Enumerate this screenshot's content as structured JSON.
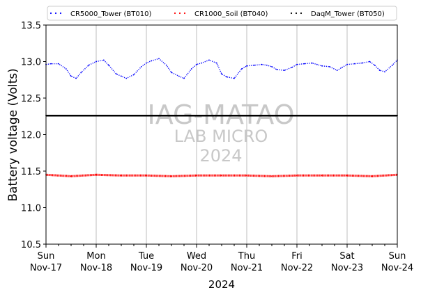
{
  "chart_data": {
    "type": "line",
    "xlabel": "2024",
    "ylabel": "Battery voltage (Volts)",
    "ylim": [
      10.5,
      13.5
    ],
    "xlim": [
      0,
      7
    ],
    "yticks": [
      "10.5",
      "11.0",
      "11.5",
      "12.0",
      "12.5",
      "13.0",
      "13.5"
    ],
    "xticks": [
      {
        "day": "Sun",
        "date": "Nov-17"
      },
      {
        "day": "Mon",
        "date": "Nov-18"
      },
      {
        "day": "Tue",
        "date": "Nov-19"
      },
      {
        "day": "Wed",
        "date": "Nov-20"
      },
      {
        "day": "Thu",
        "date": "Nov-21"
      },
      {
        "day": "Fri",
        "date": "Nov-22"
      },
      {
        "day": "Sat",
        "date": "Nov-23"
      },
      {
        "day": "Sun",
        "date": "Nov-24"
      }
    ],
    "grid": "vertical",
    "legend_position": "top",
    "watermark": [
      "IAG-MATAO",
      "LAB MICRO",
      "2024"
    ],
    "threshold_line": 12.26,
    "series": [
      {
        "name": "CR5000_Tower (BT010)",
        "color": "#0000ff",
        "style": "dotted",
        "x": [
          0,
          0.1,
          0.25,
          0.4,
          0.5,
          0.6,
          0.7,
          0.85,
          1.0,
          1.15,
          1.25,
          1.4,
          1.5,
          1.6,
          1.75,
          1.9,
          2.0,
          2.1,
          2.25,
          2.4,
          2.5,
          2.65,
          2.75,
          2.9,
          3.0,
          3.1,
          3.25,
          3.4,
          3.5,
          3.6,
          3.75,
          3.9,
          4.0,
          4.15,
          4.3,
          4.4,
          4.5,
          4.6,
          4.75,
          4.9,
          5.0,
          5.15,
          5.3,
          5.4,
          5.5,
          5.65,
          5.8,
          5.9,
          6.0,
          6.15,
          6.3,
          6.45,
          6.55,
          6.65,
          6.75,
          6.9,
          7.0
        ],
        "y": [
          12.96,
          12.97,
          12.97,
          12.9,
          12.8,
          12.77,
          12.85,
          12.95,
          13.0,
          13.02,
          12.95,
          12.83,
          12.8,
          12.77,
          12.82,
          12.93,
          12.98,
          13.01,
          13.04,
          12.95,
          12.85,
          12.8,
          12.77,
          12.9,
          12.96,
          12.98,
          13.02,
          12.98,
          12.83,
          12.79,
          12.77,
          12.9,
          12.94,
          12.95,
          12.96,
          12.95,
          12.93,
          12.89,
          12.88,
          12.92,
          12.96,
          12.97,
          12.98,
          12.96,
          12.94,
          12.93,
          12.88,
          12.92,
          12.96,
          12.97,
          12.98,
          13.0,
          12.95,
          12.88,
          12.86,
          12.95,
          13.02
        ]
      },
      {
        "name": "CR1000_Soil (BT040)",
        "color": "#ff0000",
        "style": "dotted",
        "x": [
          0,
          0.5,
          1.0,
          1.5,
          2.0,
          2.5,
          3.0,
          3.5,
          4.0,
          4.5,
          5.0,
          5.5,
          6.0,
          6.5,
          7.0
        ],
        "y": [
          11.45,
          11.43,
          11.45,
          11.44,
          11.44,
          11.43,
          11.44,
          11.44,
          11.44,
          11.43,
          11.44,
          11.44,
          11.44,
          11.43,
          11.45
        ]
      },
      {
        "name": "DaqM_Tower (BT050)",
        "color": "#000000",
        "style": "dotted",
        "x": [
          0,
          7
        ],
        "y": [
          12.26,
          12.26
        ]
      }
    ]
  }
}
